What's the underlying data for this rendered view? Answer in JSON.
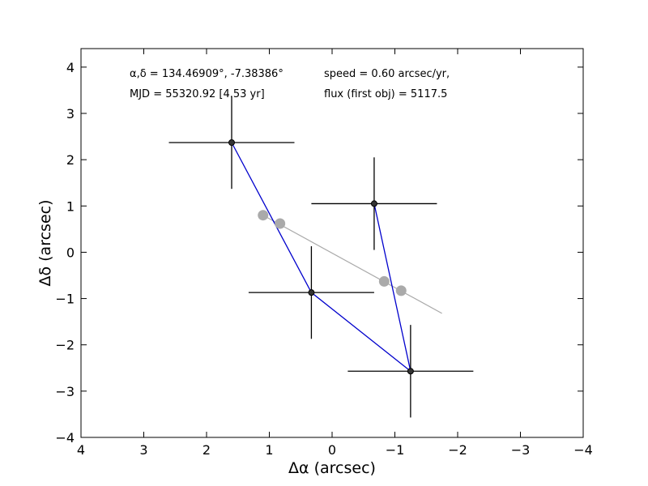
{
  "chart_data": {
    "type": "scatter",
    "xlabel": "Δα (arcsec)",
    "ylabel": "Δδ (arcsec)",
    "xlim": [
      4,
      -4
    ],
    "ylim": [
      -4,
      4.4
    ],
    "x_ticks": [
      4,
      3,
      2,
      1,
      0,
      -1,
      -2,
      -3,
      -4
    ],
    "x_tick_labels": [
      "4",
      "3",
      "2",
      "1",
      "0",
      "−1",
      "−2",
      "−3",
      "−4"
    ],
    "y_ticks": [
      4,
      3,
      2,
      1,
      0,
      -1,
      -2,
      -3,
      -4
    ],
    "y_tick_labels": [
      "4",
      "3",
      "2",
      "1",
      "0",
      "−1",
      "−2",
      "−3",
      "−4"
    ],
    "grid": false,
    "annotations": [
      "α,δ = 134.46909°, -7.38386°",
      "MJD = 55320.92 [4.53 yr]",
      "speed = 0.60 arcsec/yr,",
      "flux (first obj) = 5117.5"
    ],
    "detections": {
      "color": "#000000",
      "points": [
        {
          "x": 1.6,
          "y": 2.37,
          "xerr": 1.0,
          "yerr": 1.0
        },
        {
          "x": -0.67,
          "y": 1.05,
          "xerr": 1.0,
          "yerr": 1.0
        },
        {
          "x": 0.33,
          "y": -0.87,
          "xerr": 1.0,
          "yerr": 1.0
        },
        {
          "x": -1.25,
          "y": -2.57,
          "xerr": 1.0,
          "yerr": 1.0
        }
      ]
    },
    "connecting_path": {
      "color": "#0000cc",
      "order": [
        0,
        2,
        3,
        1
      ]
    },
    "predicted_track": {
      "color": "#aaaaaa",
      "line": [
        [
          1.1,
          0.8
        ],
        [
          -1.75,
          -1.32
        ]
      ],
      "points": [
        {
          "x": 1.1,
          "y": 0.8
        },
        {
          "x": 0.83,
          "y": 0.62
        },
        {
          "x": -0.83,
          "y": -0.63
        },
        {
          "x": -1.1,
          "y": -0.83
        }
      ]
    }
  }
}
